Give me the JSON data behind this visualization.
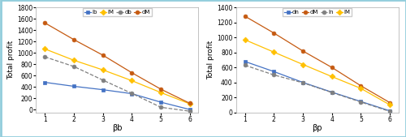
{
  "left": {
    "x": [
      1,
      2,
      3,
      4,
      5,
      6
    ],
    "series_order": [
      "Ib",
      "IM",
      "db",
      "dM"
    ],
    "series": {
      "Ib": [
        480,
        410,
        350,
        280,
        130,
        0
      ],
      "IM": [
        1070,
        870,
        700,
        510,
        300,
        100
      ],
      "db": [
        930,
        760,
        520,
        285,
        40,
        -30
      ],
      "dM": [
        1530,
        1235,
        960,
        650,
        360,
        110
      ]
    },
    "colors": {
      "Ib": "#4472c4",
      "IM": "#ffc000",
      "db": "#808080",
      "dM": "#c55a11"
    },
    "markers": {
      "Ib": "s",
      "IM": "D",
      "db": "o",
      "dM": "o"
    },
    "linestyles": {
      "Ib": "-",
      "IM": "-",
      "db": "--",
      "dM": "-"
    },
    "ylabel": "Total profit",
    "xlabel": "βb",
    "ylim": [
      -50,
      1800
    ],
    "yticks": [
      0,
      200,
      400,
      600,
      800,
      1000,
      1200,
      1400,
      1600,
      1800
    ]
  },
  "right": {
    "x": [
      1,
      2,
      3,
      4,
      5,
      6
    ],
    "series_order": [
      "dn",
      "dM",
      "ln",
      "lM"
    ],
    "series": {
      "dn": [
        680,
        545,
        400,
        270,
        145,
        20
      ],
      "dM": [
        1285,
        1060,
        820,
        600,
        355,
        130
      ],
      "ln": [
        630,
        500,
        395,
        265,
        138,
        12
      ],
      "lM": [
        970,
        805,
        640,
        478,
        320,
        100
      ]
    },
    "colors": {
      "dn": "#4472c4",
      "dM": "#c55a11",
      "ln": "#808080",
      "lM": "#ffc000"
    },
    "markers": {
      "dn": "s",
      "dM": "o",
      "ln": "o",
      "lM": "D"
    },
    "linestyles": {
      "dn": "-",
      "dM": "-",
      "ln": "--",
      "lM": "-"
    },
    "ylabel": "Total profit",
    "xlabel": "βp",
    "ylim": [
      0,
      1400
    ],
    "yticks": [
      0,
      200,
      400,
      600,
      800,
      1000,
      1200,
      1400
    ]
  },
  "figure_border_color": "#92cddc",
  "figure_bg": "#ffffff",
  "axes_bg": "#ffffff"
}
